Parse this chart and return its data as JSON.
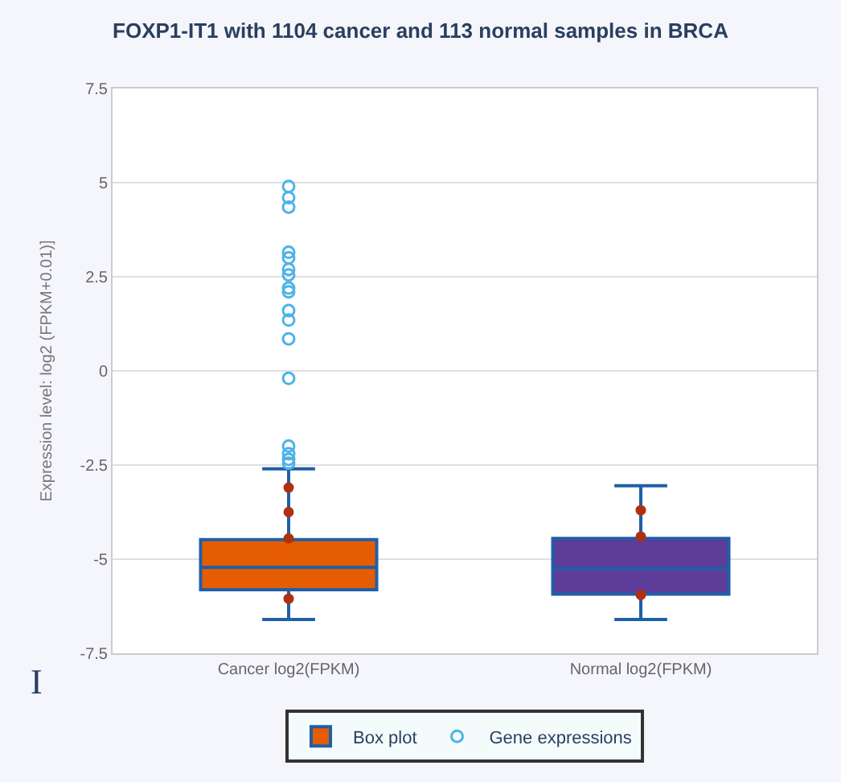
{
  "chart_data": {
    "type": "box",
    "title": "FOXP1-IT1 with 1104 cancer and 113 normal samples in BRCA",
    "ylabel": "Expression level: log2 (FPKM+0.01)]",
    "categories": [
      "Cancer log2(FPKM)",
      "Normal log2(FPKM)"
    ],
    "series": [
      {
        "name": "Box plot",
        "colors": [
          "#e65c00",
          "#5e3c99"
        ],
        "boxes": [
          {
            "low": -6.6,
            "q1": -5.81,
            "median": -5.22,
            "q3": -4.48,
            "high": -2.6
          },
          {
            "low": -6.6,
            "q1": -5.93,
            "median": -5.25,
            "q3": -4.45,
            "high": -3.05
          }
        ]
      },
      {
        "type": "scatter",
        "name": "Gene expressions",
        "color": "#4db3e6",
        "x": [
          "Cancer log2(FPKM)",
          "Cancer log2(FPKM)",
          "Cancer log2(FPKM)",
          "Cancer log2(FPKM)",
          "Cancer log2(FPKM)",
          "Cancer log2(FPKM)",
          "Cancer log2(FPKM)",
          "Cancer log2(FPKM)",
          "Cancer log2(FPKM)",
          "Cancer log2(FPKM)",
          "Cancer log2(FPKM)",
          "Cancer log2(FPKM)",
          "Cancer log2(FPKM)",
          "Cancer log2(FPKM)",
          "Cancer log2(FPKM)",
          "Cancer log2(FPKM)",
          "Cancer log2(FPKM)"
        ],
        "values": [
          4.9,
          4.6,
          4.35,
          3.15,
          3.0,
          2.7,
          2.55,
          2.2,
          2.1,
          1.6,
          1.35,
          0.85,
          -0.2,
          -2.0,
          -2.2,
          -2.35,
          -2.45
        ]
      },
      {
        "type": "scatter",
        "color": "#b03010",
        "x": [
          "Cancer log2(FPKM)",
          "Cancer log2(FPKM)",
          "Cancer log2(FPKM)",
          "Cancer log2(FPKM)",
          "Normal log2(FPKM)",
          "Normal log2(FPKM)",
          "Normal log2(FPKM)"
        ],
        "values": [
          -3.1,
          -3.75,
          -4.45,
          -6.05,
          -3.7,
          -4.4,
          -5.95
        ]
      }
    ],
    "ylim": [
      -7.5,
      7.5
    ],
    "yticks": [
      -7.5,
      -5,
      -2.5,
      0,
      2.5,
      5,
      7.5
    ],
    "grid": "y",
    "legend": "bottom",
    "annotations": [
      "I"
    ]
  }
}
